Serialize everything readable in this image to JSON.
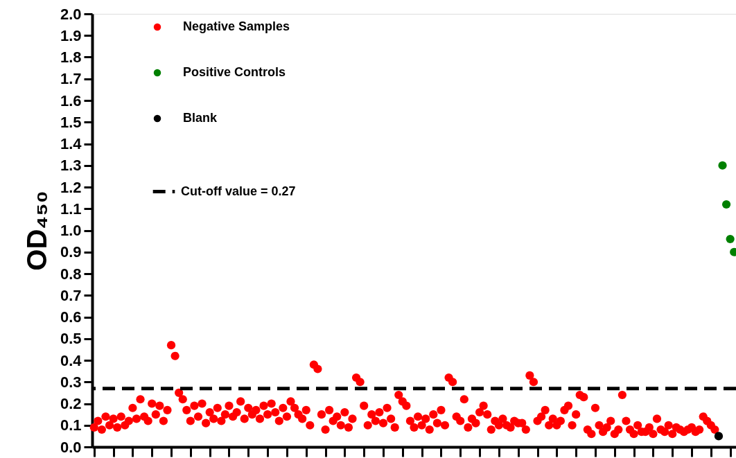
{
  "chart_data": {
    "type": "scatter",
    "ylabel": "OD₄₅₀",
    "categories": [
      null,
      null,
      null,
      null,
      null,
      null,
      null,
      null,
      null,
      null,
      null,
      null,
      null,
      null,
      null,
      null,
      null,
      null,
      null,
      null,
      null,
      null,
      null,
      null,
      null,
      null,
      null,
      null,
      null,
      null,
      null,
      null,
      null,
      null,
      null,
      null,
      null,
      null,
      null,
      null,
      null,
      null,
      null,
      null,
      null,
      null,
      null,
      null,
      null,
      null,
      null,
      null,
      null,
      null,
      null,
      null,
      null,
      null,
      null,
      null,
      null,
      null,
      null,
      null,
      null,
      null,
      null,
      null,
      null,
      null,
      null,
      null,
      null,
      null,
      null,
      null,
      null,
      null,
      null,
      null,
      null,
      null,
      null,
      null,
      null,
      null,
      null,
      null,
      null,
      null,
      null,
      null,
      null,
      null,
      null,
      null,
      null,
      null,
      null,
      null,
      null,
      null,
      null,
      null,
      null,
      null,
      null,
      null,
      null,
      null,
      null,
      null,
      null,
      null,
      null,
      null,
      null,
      null,
      null,
      null,
      null,
      null,
      null,
      null,
      null,
      null,
      null,
      null,
      null,
      null,
      null,
      null,
      null,
      null,
      null,
      null,
      null,
      null,
      null,
      null,
      null,
      null,
      null,
      null,
      null,
      null,
      null,
      null,
      null,
      null,
      null,
      null,
      null,
      null,
      null,
      null,
      null,
      null,
      null,
      null,
      null,
      null,
      null,
      null,
      null,
      null,
      null
    ],
    "ylim": [
      0,
      2
    ],
    "yticks": [
      {
        "value": 0,
        "label": "0.0"
      },
      0.1,
      0.2,
      0.3,
      0.4,
      0.5,
      0.6,
      0.7,
      0.8,
      0.9,
      {
        "value": 1,
        "label": "1.0"
      },
      1.1,
      1.2,
      1.3,
      1.4,
      1.5,
      1.6,
      1.7,
      1.8,
      1.9,
      {
        "value": 2,
        "label": "2.0"
      }
    ],
    "tick_labels": "y",
    "grid": false,
    "legend": "top left",
    "marker": "circle",
    "ref_lines": [
      {
        "axis": "y",
        "value": 0.27,
        "label": "Cut-off value = 0.27",
        "line_style": "dashed",
        "color": "#000000"
      }
    ],
    "series": [
      {
        "name": "Negative Samples",
        "color": "#ff0000",
        "values": [
          0.09,
          0.12,
          0.08,
          0.14,
          0.1,
          0.13,
          0.09,
          0.14,
          0.1,
          0.12,
          0.18,
          0.13,
          0.22,
          0.14,
          0.12,
          0.2,
          0.15,
          0.19,
          0.12,
          0.17,
          0.47,
          0.42,
          0.25,
          0.22,
          0.17,
          0.12,
          0.19,
          0.14,
          0.2,
          0.11,
          0.16,
          0.13,
          0.18,
          0.12,
          0.15,
          0.19,
          0.14,
          0.16,
          0.21,
          0.13,
          0.18,
          0.15,
          0.17,
          0.13,
          0.19,
          0.15,
          0.2,
          0.16,
          0.12,
          0.18,
          0.14,
          0.21,
          0.18,
          0.15,
          0.13,
          0.17,
          0.1,
          0.38,
          0.36,
          0.15,
          0.08,
          0.17,
          0.12,
          0.14,
          0.1,
          0.16,
          0.09,
          0.13,
          0.32,
          0.3,
          0.19,
          0.1,
          0.15,
          0.12,
          0.16,
          0.11,
          0.18,
          0.13,
          0.09,
          0.24,
          0.21,
          0.19,
          0.12,
          0.09,
          0.14,
          0.1,
          0.13,
          0.08,
          0.15,
          0.11,
          0.17,
          0.1,
          0.32,
          0.3,
          0.14,
          0.12,
          0.22,
          0.09,
          0.13,
          0.11,
          0.16,
          0.19,
          0.15,
          0.08,
          0.12,
          0.1,
          0.13,
          0.1,
          0.09,
          0.12,
          0.11,
          0.11,
          0.08,
          0.33,
          0.3,
          0.12,
          0.14,
          0.17,
          0.1,
          0.13,
          0.1,
          0.12,
          0.17,
          0.19,
          0.1,
          0.15,
          0.24,
          0.23,
          0.08,
          0.06,
          0.18,
          0.1,
          0.07,
          0.09,
          0.12,
          0.06,
          0.08,
          0.24,
          0.12,
          0.08,
          0.06,
          0.1,
          0.07,
          0.07,
          0.09,
          0.06,
          0.13,
          0.08,
          0.07,
          0.1,
          0.06,
          0.09,
          0.08,
          0.07,
          0.08,
          0.09,
          0.07,
          0.08,
          0.14,
          0.12,
          0.1,
          0.08,
          null,
          null,
          null,
          null,
          null
        ]
      },
      {
        "name": "Positive Controls",
        "color": "#008000",
        "values": [
          null,
          null,
          null,
          null,
          null,
          null,
          null,
          null,
          null,
          null,
          null,
          null,
          null,
          null,
          null,
          null,
          null,
          null,
          null,
          null,
          null,
          null,
          null,
          null,
          null,
          null,
          null,
          null,
          null,
          null,
          null,
          null,
          null,
          null,
          null,
          null,
          null,
          null,
          null,
          null,
          null,
          null,
          null,
          null,
          null,
          null,
          null,
          null,
          null,
          null,
          null,
          null,
          null,
          null,
          null,
          null,
          null,
          null,
          null,
          null,
          null,
          null,
          null,
          null,
          null,
          null,
          null,
          null,
          null,
          null,
          null,
          null,
          null,
          null,
          null,
          null,
          null,
          null,
          null,
          null,
          null,
          null,
          null,
          null,
          null,
          null,
          null,
          null,
          null,
          null,
          null,
          null,
          null,
          null,
          null,
          null,
          null,
          null,
          null,
          null,
          null,
          null,
          null,
          null,
          null,
          null,
          null,
          null,
          null,
          null,
          null,
          null,
          null,
          null,
          null,
          null,
          null,
          null,
          null,
          null,
          null,
          null,
          null,
          null,
          null,
          null,
          null,
          null,
          null,
          null,
          null,
          null,
          null,
          null,
          null,
          null,
          null,
          null,
          null,
          null,
          null,
          null,
          null,
          null,
          null,
          null,
          null,
          null,
          null,
          null,
          null,
          null,
          null,
          null,
          null,
          null,
          null,
          null,
          null,
          null,
          null,
          null,
          null,
          1.3,
          1.12,
          0.96,
          0.9
        ]
      },
      {
        "name": "Blank",
        "color": "#000000",
        "values": [
          null,
          null,
          null,
          null,
          null,
          null,
          null,
          null,
          null,
          null,
          null,
          null,
          null,
          null,
          null,
          null,
          null,
          null,
          null,
          null,
          null,
          null,
          null,
          null,
          null,
          null,
          null,
          null,
          null,
          null,
          null,
          null,
          null,
          null,
          null,
          null,
          null,
          null,
          null,
          null,
          null,
          null,
          null,
          null,
          null,
          null,
          null,
          null,
          null,
          null,
          null,
          null,
          null,
          null,
          null,
          null,
          null,
          null,
          null,
          null,
          null,
          null,
          null,
          null,
          null,
          null,
          null,
          null,
          null,
          null,
          null,
          null,
          null,
          null,
          null,
          null,
          null,
          null,
          null,
          null,
          null,
          null,
          null,
          null,
          null,
          null,
          null,
          null,
          null,
          null,
          null,
          null,
          null,
          null,
          null,
          null,
          null,
          null,
          null,
          null,
          null,
          null,
          null,
          null,
          null,
          null,
          null,
          null,
          null,
          null,
          null,
          null,
          null,
          null,
          null,
          null,
          null,
          null,
          null,
          null,
          null,
          null,
          null,
          null,
          null,
          null,
          null,
          null,
          null,
          null,
          null,
          null,
          null,
          null,
          null,
          null,
          null,
          null,
          null,
          null,
          null,
          null,
          null,
          null,
          null,
          null,
          null,
          null,
          null,
          null,
          null,
          null,
          null,
          null,
          null,
          null,
          null,
          null,
          null,
          null,
          null,
          null,
          0.05,
          null,
          null,
          null,
          null
        ]
      }
    ]
  }
}
